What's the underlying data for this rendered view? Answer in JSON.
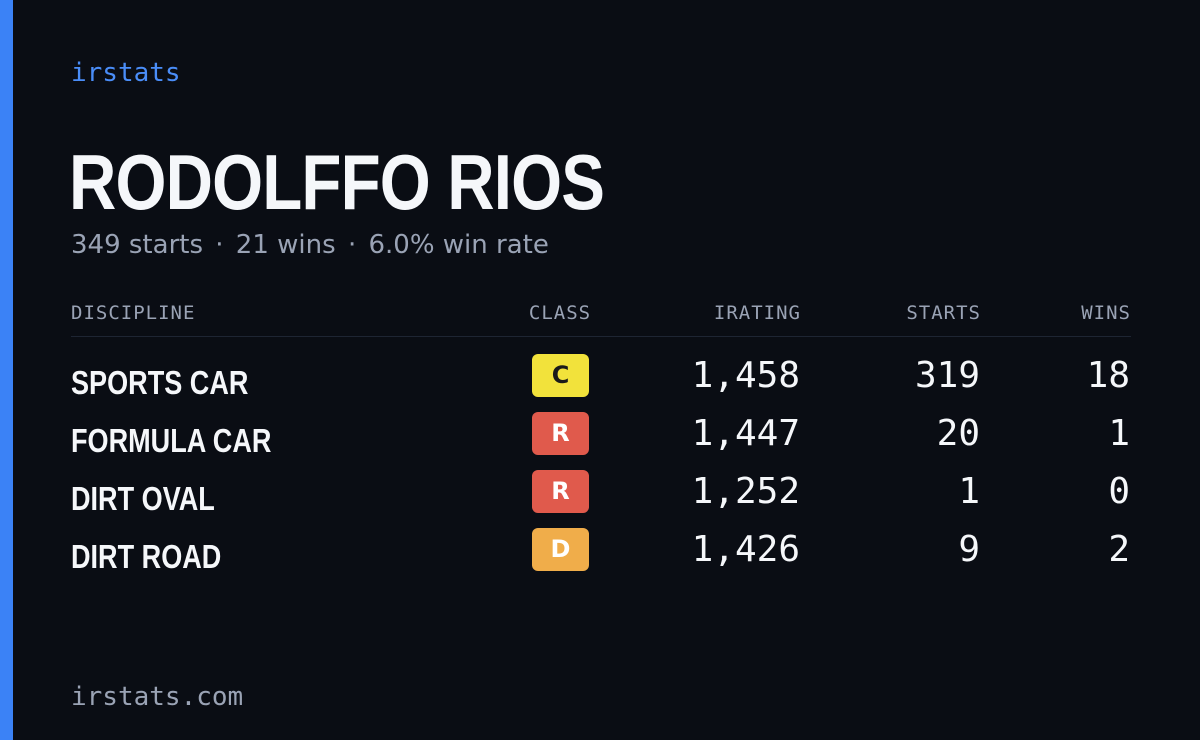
{
  "brand": "irstats",
  "driver": {
    "name": "RODOLFFO RIOS",
    "starts_text": "349 starts",
    "separator": "·",
    "wins_text": "21 wins",
    "winrate_text": "6.0% win rate"
  },
  "table": {
    "headers": {
      "discipline": "DISCIPLINE",
      "class": "CLASS",
      "irating": "IRATING",
      "starts": "STARTS",
      "wins": "WINS"
    },
    "rows": [
      {
        "discipline": "SPORTS CAR",
        "class": "C",
        "class_bg": "#f2e23b",
        "class_fg": "#1a1a1a",
        "irating": "1,458",
        "starts": "319",
        "wins": "18"
      },
      {
        "discipline": "FORMULA CAR",
        "class": "R",
        "class_bg": "#e05a4c",
        "class_fg": "#ffffff",
        "irating": "1,447",
        "starts": "20",
        "wins": "1"
      },
      {
        "discipline": "DIRT OVAL",
        "class": "R",
        "class_bg": "#e05a4c",
        "class_fg": "#ffffff",
        "irating": "1,252",
        "starts": "1",
        "wins": "0"
      },
      {
        "discipline": "DIRT ROAD",
        "class": "D",
        "class_bg": "#f0ad4a",
        "class_fg": "#ffffff",
        "irating": "1,426",
        "starts": "9",
        "wins": "2"
      }
    ]
  },
  "footer": "irstats.com",
  "colors": {
    "background": "#0a0d14",
    "accent": "#3b82f6",
    "muted_text": "#9aa3b5"
  }
}
